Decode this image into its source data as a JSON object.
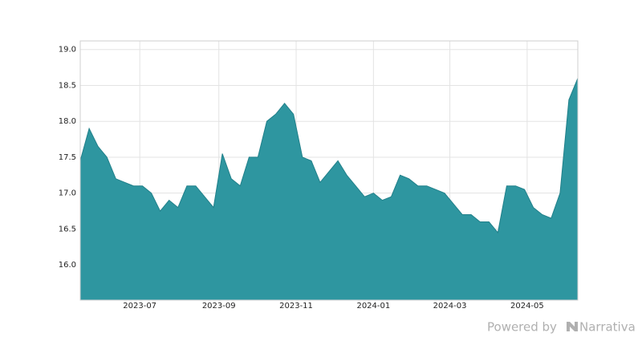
{
  "chart_data": {
    "type": "area",
    "values": [
      17.45,
      17.9,
      17.65,
      17.5,
      17.2,
      17.15,
      17.1,
      17.1,
      17.0,
      16.75,
      16.9,
      16.8,
      17.1,
      17.1,
      16.95,
      16.8,
      17.55,
      17.2,
      17.1,
      17.5,
      17.5,
      18.0,
      18.1,
      18.25,
      18.1,
      17.5,
      17.45,
      17.15,
      17.3,
      17.45,
      17.25,
      17.1,
      16.95,
      17.0,
      16.9,
      16.95,
      17.25,
      17.2,
      17.1,
      17.1,
      17.05,
      17.0,
      16.85,
      16.7,
      16.7,
      16.6,
      16.6,
      16.45,
      17.1,
      17.1,
      17.05,
      16.8,
      16.7,
      16.65,
      17.0,
      18.3,
      18.6
    ],
    "color": "#2e96a0",
    "line_color": "#21808a",
    "xlim": [
      0,
      56
    ],
    "xticks": [
      {
        "value": 6.7,
        "label": "2023-07"
      },
      {
        "value": 15.6,
        "label": "2023-09"
      },
      {
        "value": 24.3,
        "label": "2023-11"
      },
      {
        "value": 33.0,
        "label": "2024-01"
      },
      {
        "value": 41.6,
        "label": "2024-03"
      },
      {
        "value": 50.3,
        "label": "2024-05"
      }
    ],
    "ylim": [
      15.51,
      19.12
    ],
    "yticks": [
      {
        "value": 16.0,
        "label": "16.0"
      },
      16.5,
      {
        "value": 17.0,
        "label": "17.0"
      },
      17.5,
      {
        "value": 18.0,
        "label": "18.0"
      },
      18.5,
      {
        "value": 19.0,
        "label": "19.0"
      }
    ],
    "grid": true
  },
  "watermark": "Powered by",
  "brand": "Narrativa"
}
